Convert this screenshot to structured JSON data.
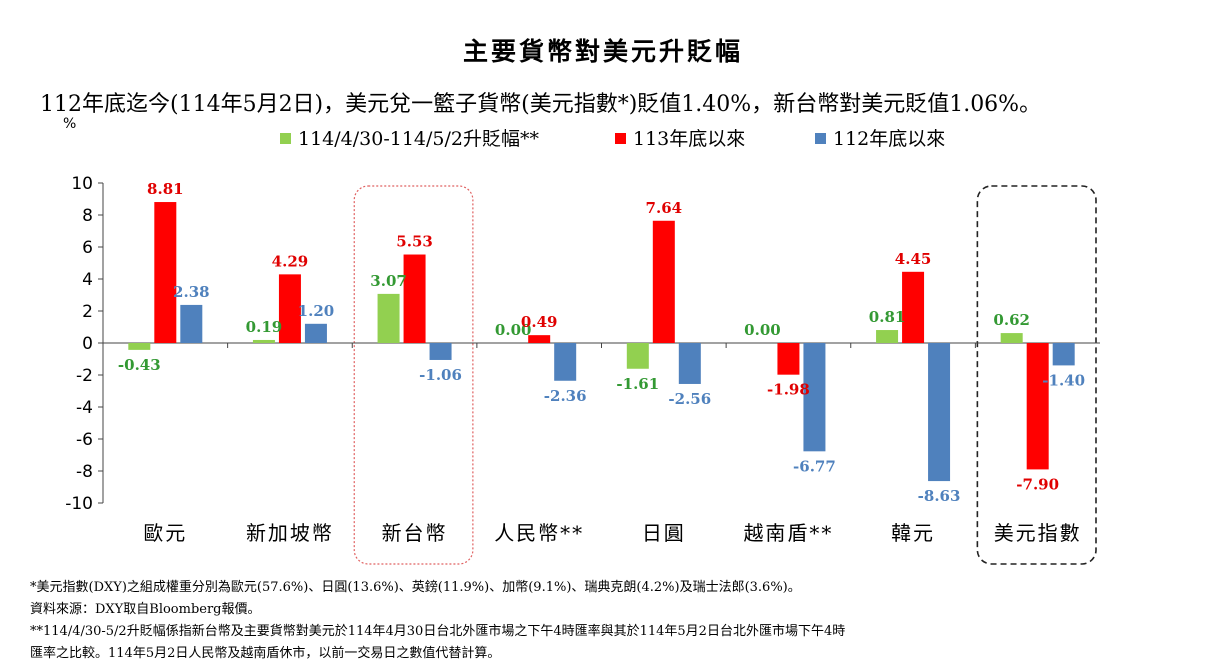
{
  "chart_data": {
    "type": "bar",
    "title": "主要貨幣對美元升貶幅",
    "subtitle": "112年底迄今(114年5月2日)，美元兌一籃子貨幣(美元指數*)貶值1.40%，新台幣對美元貶值1.06%。",
    "ylabel": "%",
    "ylim": [
      -10,
      10
    ],
    "yticks": [
      "10",
      "8",
      "6",
      "4",
      "2",
      "0",
      "-2",
      "-4",
      "-6",
      "-8",
      "-10"
    ],
    "categories": [
      "歐元",
      "新加坡幣",
      "新台幣",
      "人民幣**",
      "日圓",
      "越南盾**",
      "韓元",
      "美元指數"
    ],
    "series": [
      {
        "name": "114/4/30-114/5/2升貶幅**",
        "color": "#92d050",
        "label_color": "#339933",
        "values": [
          -0.43,
          0.19,
          3.07,
          0.0,
          -1.61,
          0.0,
          0.81,
          0.62
        ],
        "labels": [
          "-0.43",
          "0.19",
          "3.07",
          "0.00",
          "-1.61",
          "0.00",
          "0.81",
          "0.62"
        ]
      },
      {
        "name": "113年底以來",
        "color": "#ff0000",
        "label_color": "#e00000",
        "values": [
          8.81,
          4.29,
          5.53,
          0.49,
          7.64,
          -1.98,
          4.45,
          -7.9
        ],
        "labels": [
          "8.81",
          "4.29",
          "5.53",
          "0.49",
          "7.64",
          "-1.98",
          "4.45",
          "-7.90"
        ]
      },
      {
        "name": "112年底以來",
        "color": "#4f81bd",
        "label_color": "#4f81bd",
        "values": [
          2.38,
          1.2,
          -1.06,
          -2.36,
          -2.56,
          -6.77,
          -8.63,
          -1.4
        ],
        "labels": [
          "2.38",
          "1.20",
          "-1.06",
          "-2.36",
          "-2.56",
          "-6.77",
          "-8.63",
          "-1.40"
        ]
      }
    ],
    "highlighted_categories": [
      "新台幣",
      "美元指數"
    ]
  },
  "notes": {
    "line1": "*美元指數(DXY)之組成權重分別為歐元(57.6%)、日圓(13.6%)、英鎊(11.9%)、加幣(9.1%)、瑞典克朗(4.2%)及瑞士法郎(3.6%)。",
    "line2": "資料來源：DXY取自Bloomberg報價。",
    "line3": "**114/4/30-5/2升貶幅係指新台幣及主要貨幣對美元於114年4月30日台北外匯市場之下午4時匯率與其於114年5月2日台北外匯市場下午4時",
    "line4": "匯率之比較。114年5月2日人民幣及越南盾休市，以前一交易日之數值代替計算。"
  }
}
